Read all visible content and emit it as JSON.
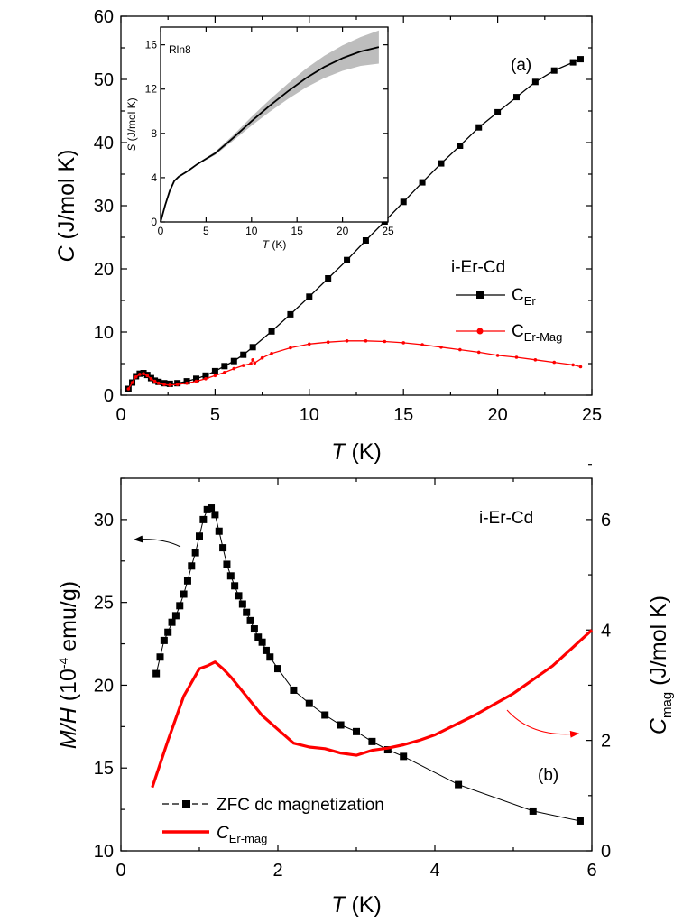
{
  "colors": {
    "black": "#000000",
    "red": "#ff0000",
    "band": "#bdbdbd"
  },
  "chart_data": [
    {
      "id": "a",
      "type": "line",
      "panel_label": "(a)",
      "xlabel": "T (K)",
      "xlabel_var": "T",
      "xlabel_unit": " (K)",
      "ylabel": "C (J/mol K)",
      "ylabel_var": "C",
      "ylabel_unit": " (J/mol K)",
      "xlim": [
        0,
        25
      ],
      "ylim": [
        0,
        60
      ],
      "xticks": [
        0,
        5,
        10,
        15,
        20,
        25
      ],
      "yticks": [
        0,
        10,
        20,
        30,
        40,
        50,
        60
      ],
      "legend": {
        "title": "i-Er-Cd",
        "entries": [
          {
            "main": "C",
            "sub": "Er",
            "color": "#000000",
            "marker": "square"
          },
          {
            "main": "C",
            "sub": "Er-Mag",
            "color": "#ff0000",
            "marker": "circle"
          }
        ]
      },
      "series": [
        {
          "name": "C_Er",
          "color": "#000000",
          "marker": "square",
          "x": [
            0.4,
            0.6,
            0.8,
            1.0,
            1.2,
            1.4,
            1.6,
            1.8,
            2.0,
            2.3,
            2.6,
            3.0,
            3.5,
            4.0,
            4.5,
            5.0,
            5.5,
            6.0,
            6.5,
            7.0,
            8.0,
            9.0,
            10.0,
            11.0,
            12.0,
            13.0,
            14.0,
            15.0,
            16.0,
            17.0,
            18.0,
            19.0,
            20.0,
            21.0,
            22.0,
            23.0,
            24.0,
            24.4
          ],
          "y": [
            1.0,
            2.0,
            3.0,
            3.4,
            3.5,
            3.2,
            2.7,
            2.3,
            2.1,
            1.9,
            1.8,
            1.9,
            2.2,
            2.6,
            3.1,
            3.8,
            4.6,
            5.4,
            6.4,
            7.6,
            10.1,
            12.8,
            15.6,
            18.5,
            21.4,
            24.5,
            27.5,
            30.6,
            33.7,
            36.7,
            39.5,
            42.4,
            44.8,
            47.2,
            49.6,
            51.4,
            52.7,
            53.2
          ]
        },
        {
          "name": "C_Er-Mag",
          "color": "#ff0000",
          "marker": "circle",
          "x": [
            0.4,
            0.6,
            0.8,
            1.0,
            1.2,
            1.4,
            1.6,
            1.8,
            2.0,
            2.3,
            2.6,
            3.0,
            3.5,
            4.0,
            4.5,
            5.0,
            5.5,
            6.0,
            6.5,
            6.9,
            7.0,
            7.1,
            7.5,
            8.0,
            9.0,
            10.0,
            11.0,
            12.0,
            13.0,
            14.0,
            15.0,
            16.0,
            17.0,
            18.0,
            19.0,
            20.0,
            21.0,
            22.0,
            23.0,
            24.0,
            24.4
          ],
          "y": [
            1.0,
            2.0,
            2.9,
            3.3,
            3.4,
            3.1,
            2.6,
            2.2,
            1.9,
            1.7,
            1.6,
            1.7,
            1.9,
            2.2,
            2.6,
            3.1,
            3.6,
            4.2,
            4.7,
            5.0,
            5.6,
            5.1,
            5.9,
            6.6,
            7.5,
            8.1,
            8.4,
            8.6,
            8.6,
            8.5,
            8.3,
            8.0,
            7.6,
            7.2,
            6.8,
            6.3,
            6.0,
            5.6,
            5.2,
            4.8,
            4.5
          ]
        }
      ]
    },
    {
      "id": "a-inset",
      "type": "line",
      "annotation": "Rln8",
      "xlabel": "T (K)",
      "xlabel_var": "T",
      "xlabel_unit": " (K)",
      "ylabel": "S (J/mol K)",
      "ylabel_var": "S",
      "ylabel_unit": " (J/mol K)",
      "xlim": [
        0,
        25
      ],
      "ylim": [
        0,
        17.6
      ],
      "xticks": [
        0,
        5,
        10,
        15,
        20,
        25
      ],
      "yticks": [
        0,
        4,
        8,
        12,
        16
      ],
      "series": [
        {
          "name": "S",
          "color": "#000000",
          "x": [
            0,
            0.5,
            1.0,
            1.5,
            2.0,
            3.0,
            4.0,
            5.0,
            6.0,
            8.0,
            10.0,
            12.0,
            14.0,
            16.0,
            18.0,
            20.0,
            22.0,
            24.0
          ],
          "y": [
            0,
            1.5,
            2.8,
            3.7,
            4.1,
            4.6,
            5.2,
            5.7,
            6.2,
            7.6,
            9.1,
            10.5,
            11.8,
            13.0,
            14.0,
            14.8,
            15.4,
            15.8
          ],
          "band": [
            0,
            0,
            0,
            0,
            0,
            0,
            0.05,
            0.1,
            0.15,
            0.25,
            0.4,
            0.55,
            0.7,
            0.85,
            1.0,
            1.15,
            1.3,
            1.5
          ]
        }
      ]
    },
    {
      "id": "b",
      "type": "line",
      "panel_label": "(b)",
      "title": "i-Er-Cd",
      "xlabel": "T (K)",
      "xlabel_var": "T",
      "xlabel_unit": " (K)",
      "ylabel": "M/H (10-4 emu/g)",
      "ylabel_var": "M/H",
      "ylabel_pre": " (10",
      "ylabel_sup": "-4",
      "ylabel_post": " emu/g)",
      "y2label": "Cmag (J/mol K)",
      "y2label_main": "C",
      "y2label_sub": "mag",
      "y2label_unit": " (J/mol K)",
      "xlim": [
        0,
        6
      ],
      "ylim": [
        10,
        32.5
      ],
      "y2lim": [
        0,
        6.75
      ],
      "xticks": [
        0,
        2,
        4,
        6
      ],
      "yticks": [
        10,
        15,
        20,
        25,
        30
      ],
      "y2ticks": [
        0,
        2,
        4,
        6
      ],
      "legend": {
        "entries": [
          {
            "text": "ZFC dc magnetization",
            "color": "#000000",
            "marker": "square"
          },
          {
            "main": "C",
            "sub": "Er-mag",
            "color": "#ff0000",
            "marker": "none"
          }
        ]
      },
      "series": [
        {
          "name": "ZFC dc magnetization",
          "axis": "left",
          "color": "#000000",
          "marker": "square",
          "x": [
            0.45,
            0.5,
            0.55,
            0.6,
            0.65,
            0.7,
            0.75,
            0.8,
            0.85,
            0.9,
            0.95,
            1.0,
            1.05,
            1.1,
            1.15,
            1.2,
            1.25,
            1.3,
            1.35,
            1.4,
            1.45,
            1.5,
            1.55,
            1.6,
            1.65,
            1.7,
            1.75,
            1.8,
            1.85,
            1.9,
            2.0,
            2.2,
            2.4,
            2.6,
            2.8,
            3.0,
            3.2,
            3.4,
            3.6,
            4.3,
            5.25,
            5.85
          ],
          "y": [
            20.7,
            21.7,
            22.7,
            23.2,
            23.8,
            24.2,
            24.8,
            25.5,
            26.3,
            27.2,
            28.0,
            29.0,
            30.0,
            30.6,
            30.7,
            30.3,
            29.3,
            28.3,
            27.3,
            26.6,
            26.0,
            25.4,
            24.9,
            24.4,
            23.9,
            23.4,
            22.9,
            22.6,
            22.1,
            21.7,
            21.0,
            19.7,
            18.9,
            18.2,
            17.6,
            17.2,
            16.6,
            16.1,
            15.7,
            14.0,
            12.4,
            11.8
          ]
        },
        {
          "name": "C_Er-mag",
          "axis": "right",
          "color": "#ff0000",
          "marker": "none",
          "x": [
            0.4,
            0.6,
            0.8,
            1.0,
            1.1,
            1.2,
            1.3,
            1.4,
            1.6,
            1.8,
            2.0,
            2.2,
            2.4,
            2.6,
            2.8,
            3.0,
            3.2,
            3.4,
            3.6,
            3.8,
            4.0,
            4.5,
            5.0,
            5.5,
            6.0
          ],
          "y": [
            1.15,
            2.0,
            2.8,
            3.3,
            3.35,
            3.42,
            3.3,
            3.15,
            2.8,
            2.45,
            2.2,
            1.95,
            1.88,
            1.85,
            1.77,
            1.73,
            1.82,
            1.86,
            1.92,
            2.0,
            2.1,
            2.45,
            2.85,
            3.35,
            4.0
          ]
        }
      ]
    }
  ]
}
